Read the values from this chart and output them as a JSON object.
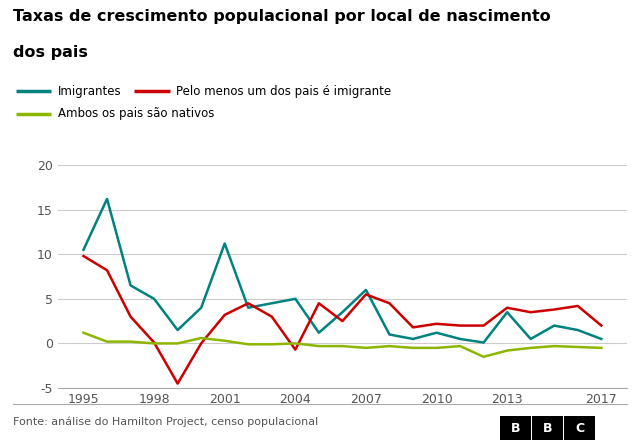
{
  "title_line1": "Taxas de crescimento populacional por local de nascimento",
  "title_line2": "dos pais",
  "source": "Fonte: análise do Hamilton Project, censo populacional",
  "years": [
    1995,
    1996,
    1997,
    1998,
    1999,
    2000,
    2001,
    2002,
    2003,
    2004,
    2005,
    2006,
    2007,
    2008,
    2009,
    2010,
    2011,
    2012,
    2013,
    2014,
    2015,
    2016,
    2017
  ],
  "imigrantes": [
    10.5,
    16.2,
    6.5,
    5.0,
    1.5,
    4.0,
    11.2,
    4.0,
    4.5,
    5.0,
    1.2,
    3.5,
    6.0,
    1.0,
    0.5,
    1.2,
    0.5,
    0.1,
    3.5,
    0.5,
    2.0,
    1.5,
    0.5
  ],
  "pelo_menos_um": [
    9.8,
    8.2,
    3.0,
    0.1,
    -4.5,
    0.0,
    3.2,
    4.5,
    3.0,
    -0.7,
    4.5,
    2.5,
    5.5,
    4.5,
    1.8,
    2.2,
    2.0,
    2.0,
    4.0,
    3.5,
    3.8,
    4.2,
    2.0
  ],
  "ambos_nativos": [
    1.2,
    0.2,
    0.2,
    0.0,
    0.0,
    0.6,
    0.3,
    -0.1,
    -0.1,
    0.0,
    -0.3,
    -0.3,
    -0.5,
    -0.3,
    -0.5,
    -0.5,
    -0.3,
    -1.5,
    -0.8,
    -0.5,
    -0.3,
    -0.4,
    -0.5
  ],
  "color_imigrantes": "#00827F",
  "color_pelo_menos": "#CC0000",
  "color_ambos": "#8DB600",
  "legend_imigrantes": "Imigrantes",
  "legend_pelo_menos": "Pelo menos um dos pais é imigrante",
  "legend_ambos": "Ambos os pais são nativos",
  "ylim": [
    -5,
    20
  ],
  "yticks": [
    -5,
    0,
    5,
    10,
    15,
    20
  ],
  "xticks": [
    1995,
    1998,
    2001,
    2004,
    2007,
    2010,
    2013,
    2017
  ],
  "background_color": "#ffffff",
  "grid_color": "#cccccc"
}
